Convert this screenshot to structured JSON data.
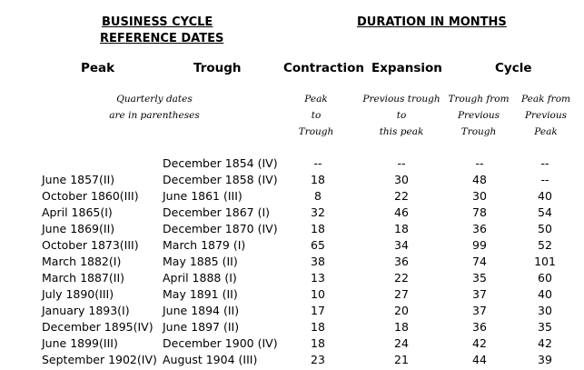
{
  "titles": {
    "left_line1": "BUSINESS CYCLE",
    "left_line2": "REFERENCE DATES",
    "right": "DURATION IN MONTHS"
  },
  "headers": {
    "peak": "Peak",
    "trough": "Trough",
    "contraction": "Contraction",
    "expansion": "Expansion",
    "cycle": "Cycle"
  },
  "subheaders": {
    "quarterly_line1": "Quarterly dates",
    "quarterly_line2": "are in parentheses",
    "contraction_line1": "Peak",
    "contraction_line2": "to",
    "contraction_line3": "Trough",
    "expansion_line1": "Previous trough",
    "expansion_line2": "to",
    "expansion_line3": "this peak",
    "cycle_t_line1": "Trough from",
    "cycle_t_line2": "Previous",
    "cycle_t_line3": "Trough",
    "cycle_p_line1": "Peak from",
    "cycle_p_line2": "Previous",
    "cycle_p_line3": "Peak"
  },
  "rows": [
    {
      "peak": "",
      "trough": "December 1854 (IV)",
      "contraction": "--",
      "expansion": "--",
      "cycle_trough": "--",
      "cycle_peak": "--"
    },
    {
      "peak": "June 1857(II)",
      "trough": "December 1858 (IV)",
      "contraction": "18",
      "expansion": "30",
      "cycle_trough": "48",
      "cycle_peak": "--"
    },
    {
      "peak": "October 1860(III)",
      "trough": "June 1861 (III)",
      "contraction": "8",
      "expansion": "22",
      "cycle_trough": "30",
      "cycle_peak": "40"
    },
    {
      "peak": "April 1865(I)",
      "trough": "December 1867 (I)",
      "contraction": "32",
      "expansion": "46",
      "cycle_trough": "78",
      "cycle_peak": "54"
    },
    {
      "peak": "June 1869(II)",
      "trough": "December 1870 (IV)",
      "contraction": "18",
      "expansion": "18",
      "cycle_trough": "36",
      "cycle_peak": "50"
    },
    {
      "peak": "October 1873(III)",
      "trough": "March 1879 (I)",
      "contraction": "65",
      "expansion": "34",
      "cycle_trough": "99",
      "cycle_peak": "52"
    },
    {
      "peak": "March 1882(I)",
      "trough": "May 1885 (II)",
      "contraction": "38",
      "expansion": "36",
      "cycle_trough": "74",
      "cycle_peak": "101"
    },
    {
      "peak": "March 1887(II)",
      "trough": "April 1888 (I)",
      "contraction": "13",
      "expansion": "22",
      "cycle_trough": "35",
      "cycle_peak": "60"
    },
    {
      "peak": "July 1890(III)",
      "trough": "May 1891 (II)",
      "contraction": "10",
      "expansion": "27",
      "cycle_trough": "37",
      "cycle_peak": "40"
    },
    {
      "peak": "January 1893(I)",
      "trough": "June 1894 (II)",
      "contraction": "17",
      "expansion": "20",
      "cycle_trough": "37",
      "cycle_peak": "30"
    },
    {
      "peak": "December 1895(IV)",
      "trough": "June 1897 (II)",
      "contraction": "18",
      "expansion": "18",
      "cycle_trough": "36",
      "cycle_peak": "35"
    },
    {
      "peak": "June 1899(III)",
      "trough": "December 1900 (IV)",
      "contraction": "18",
      "expansion": "24",
      "cycle_trough": "42",
      "cycle_peak": "42"
    },
    {
      "peak": "September 1902(IV)",
      "trough": "August 1904 (III)",
      "contraction": "23",
      "expansion": "21",
      "cycle_trough": "44",
      "cycle_peak": "39"
    }
  ]
}
